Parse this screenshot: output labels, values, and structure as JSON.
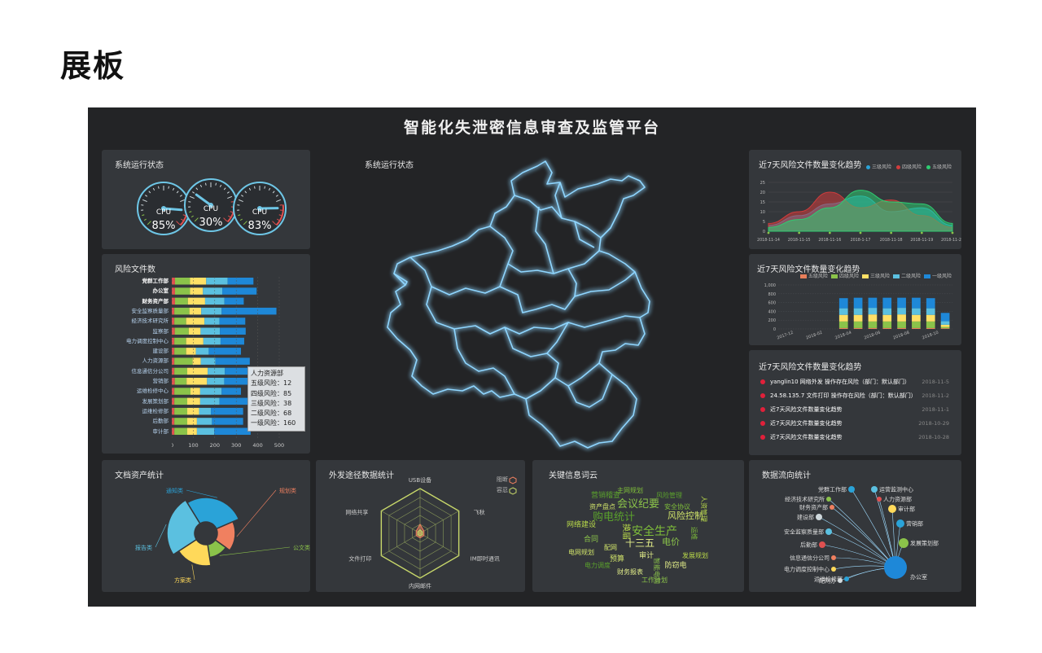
{
  "page_title": "展板",
  "board_title": "智能化失泄密信息审查及监管平台",
  "panels": {
    "status": {
      "title": "系统运行状态",
      "gauges": [
        {
          "label": "CPU",
          "value": "85%",
          "level": 0.85
        },
        {
          "label": "CPU",
          "value": "30%",
          "level": 0.3
        },
        {
          "label": "CPU",
          "value": "83%",
          "level": 0.83
        }
      ]
    },
    "map": {
      "title": "系统运行状态"
    },
    "risk_files": {
      "title": "风险文件数",
      "tooltip": {
        "title": "人力资源部",
        "lines": [
          "五级风险：12",
          "四级风险：85",
          "三级风险：38",
          "二级风险：68",
          "一级风险：160"
        ]
      }
    },
    "trend_area": {
      "title": "近7天风险文件数量变化趋势",
      "legend": [
        "三级风险",
        "四级风险",
        "五级风险"
      ]
    },
    "trend_bar": {
      "title": "近7天风险文件数量变化趋势",
      "legend": [
        "五级风险",
        "四级风险",
        "三级风险",
        "二级风险",
        "一级风险"
      ]
    },
    "trend_list": {
      "title": "近7天风险文件数量变化趋势",
      "items": [
        {
          "text": "yanglin10 网络外发 操作存在风险（部门：默认部门）",
          "date": "2018-11-5"
        },
        {
          "text": "24.58.135.7 文件打印 操作存在风险（部门：默认部门）",
          "date": "2018-11-2"
        },
        {
          "text": "近7天风险文件数量变化趋势",
          "date": "2018-11-1"
        },
        {
          "text": "近7天风险文件数量变化趋势",
          "date": "2018-10-29"
        },
        {
          "text": "近7天风险文件数量变化趋势",
          "date": "2018-10-28"
        }
      ]
    },
    "assets": {
      "title": "文档资产统计",
      "labels": [
        "通知类",
        "规划类",
        "公文类",
        "方案类",
        "报告类"
      ]
    },
    "channels": {
      "title": "外发途径数据统计",
      "legend": [
        "阻断",
        "容忍"
      ],
      "axes": [
        "USB设备",
        "飞秋",
        "IM即时通讯",
        "内网邮件",
        "文件打印",
        "网络共享"
      ]
    },
    "word_cloud": {
      "title": "关键信息词云",
      "words": [
        "会议纪要",
        "风险控制",
        "购电统计",
        "换届",
        "安全生产",
        "十三五",
        "电价",
        "资产盘点",
        "风险管理",
        "网络建设",
        "运维",
        "审计",
        "合同",
        "预算",
        "电力调度",
        "发展规划",
        "主网规划",
        "防窃电",
        "智能电网",
        "电网规划",
        "营销稽查",
        "人资管理",
        "安全协议",
        "财务报表",
        "工作计划",
        "配网"
      ]
    },
    "data_flow": {
      "title": "数据流向统计",
      "nodes": [
        "党群工作部",
        "运营监测中心",
        "经济技术研究所",
        "人力资源部",
        "财务资产部",
        "审计部",
        "建设部",
        "营销部",
        "安全监察质量部",
        "发展策划部",
        "后勤部",
        "信息通信分公司",
        "电力调度控制中心",
        "配网办",
        "运维检修部",
        "办公室"
      ]
    }
  },
  "chart_data": [
    {
      "type": "bar",
      "title": "风险文件数",
      "orientation": "horizontal",
      "categories": [
        "党群工作部",
        "办公室",
        "财务资产部",
        "安全监察质量部",
        "经济技术研究所",
        "监察部",
        "电力调度控制中心",
        "建设部",
        "人力资源部",
        "信息通信分公司",
        "营销部",
        "运维检修中心",
        "发展策划部",
        "运维检修部",
        "后勤部",
        "审计部"
      ],
      "x_ticks": [
        "0",
        "100",
        "200",
        "300",
        "400",
        "500"
      ],
      "xlim": [
        0,
        500
      ],
      "series": [
        {
          "name": "五级风险",
          "color": "#e05050",
          "values": [
            15,
            15,
            15,
            12,
            12,
            14,
            12,
            12,
            12,
            12,
            14,
            12,
            12,
            12,
            12,
            12
          ]
        },
        {
          "name": "四级风险",
          "color": "#8bc34a",
          "values": [
            70,
            70,
            60,
            70,
            55,
            65,
            55,
            55,
            85,
            60,
            55,
            75,
            60,
            60,
            60,
            60
          ]
        },
        {
          "name": "三级风险",
          "color": "#ffe066",
          "values": [
            75,
            60,
            80,
            55,
            85,
            55,
            80,
            45,
            38,
            95,
            95,
            45,
            60,
            55,
            45,
            45
          ]
        },
        {
          "name": "二级风险",
          "color": "#5bc0e0",
          "values": [
            100,
            90,
            90,
            95,
            70,
            90,
            80,
            60,
            68,
            80,
            80,
            100,
            90,
            55,
            70,
            80
          ]
        },
        {
          "name": "一级风险",
          "color": "#1e88d8",
          "values": [
            120,
            160,
            90,
            255,
            120,
            120,
            110,
            150,
            160,
            130,
            110,
            90,
            150,
            150,
            145,
            170
          ]
        }
      ]
    },
    {
      "type": "area",
      "title": "近7天风险文件数量变化趋势",
      "x": [
        "2018-11-14",
        "2018-11-15",
        "2018-11-16",
        "2018-1-17",
        "2018-11-18",
        "2018-11-19",
        "2018-11-20"
      ],
      "y_ticks": [
        "0",
        "5",
        "10",
        "15",
        "20",
        "25"
      ],
      "ylim": [
        0,
        25
      ],
      "series": [
        {
          "name": "三级风险",
          "color": "#2aa3d8",
          "values": [
            3,
            8,
            14,
            18,
            10,
            12,
            3
          ]
        },
        {
          "name": "四级风险",
          "color": "#d23c3c",
          "values": [
            4,
            10,
            20,
            12,
            16,
            8,
            2
          ]
        },
        {
          "name": "五级风险",
          "color": "#2ecc71",
          "values": [
            2,
            6,
            12,
            21,
            15,
            14,
            4
          ]
        }
      ]
    },
    {
      "type": "bar",
      "title": "近7天风险文件数量变化趋势",
      "stacked": true,
      "x_ticks": [
        "2017-12",
        "2018-02",
        "2018-04",
        "2018-06",
        "2018-08",
        "2018-10"
      ],
      "y_ticks": [
        "0",
        "200",
        "400",
        "600",
        "800",
        "1,000"
      ],
      "ylim": [
        0,
        1000
      ],
      "categories": [
        "2017-12",
        "2018-01",
        "2018-02",
        "2018-03",
        "2018-04",
        "2018-05",
        "2018-06",
        "2018-07",
        "2018-08",
        "2018-09",
        "2018-10",
        "2018-11"
      ],
      "series": [
        {
          "name": "五级风险",
          "color": "#e67e5a",
          "values": [
            0,
            0,
            0,
            0,
            20,
            20,
            20,
            20,
            20,
            20,
            20,
            15
          ]
        },
        {
          "name": "四级风险",
          "color": "#8bc34a",
          "values": [
            0,
            0,
            0,
            0,
            150,
            150,
            150,
            150,
            150,
            150,
            150,
            30
          ]
        },
        {
          "name": "三级风险",
          "color": "#ffe066",
          "values": [
            0,
            0,
            0,
            0,
            150,
            150,
            160,
            150,
            160,
            150,
            150,
            50
          ]
        },
        {
          "name": "二级风险",
          "color": "#5bc0e0",
          "values": [
            0,
            0,
            0,
            0,
            150,
            150,
            150,
            150,
            150,
            150,
            150,
            80
          ]
        },
        {
          "name": "一级风险",
          "color": "#1e88d8",
          "values": [
            0,
            0,
            0,
            0,
            230,
            240,
            230,
            240,
            230,
            240,
            230,
            190
          ]
        }
      ]
    },
    {
      "type": "pie",
      "title": "文档资产统计",
      "labels": [
        "通知类",
        "规划类",
        "公文类",
        "方案类",
        "报告类"
      ],
      "values": [
        30,
        18,
        14,
        20,
        28
      ],
      "colors": [
        "#2aa3d8",
        "#f08060",
        "#8bc34a",
        "#ffd95a",
        "#5bc0e0"
      ]
    },
    {
      "type": "radar",
      "title": "外发途径数据统计",
      "axes": [
        "USB设备",
        "飞秋",
        "IM即时通讯",
        "内网邮件",
        "文件打印",
        "网络共享"
      ],
      "max": 5,
      "series": [
        {
          "name": "阻断",
          "color": "#f08060",
          "values": [
            1,
            0.5,
            0.5,
            0.5,
            0.5,
            0.5
          ]
        },
        {
          "name": "容忍",
          "color": "#c8d86a",
          "values": [
            0.4,
            0.3,
            0.3,
            0.3,
            0.3,
            0.3
          ]
        }
      ]
    }
  ]
}
